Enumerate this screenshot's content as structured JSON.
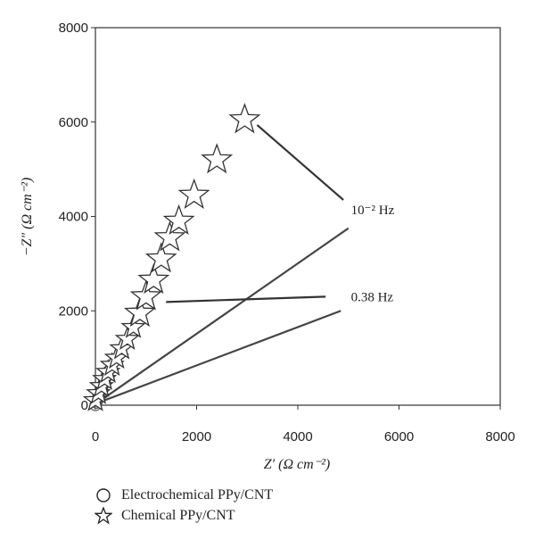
{
  "chart_data": {
    "type": "scatter",
    "title": "",
    "xlabel": "Z′ (Ω cm⁻²)",
    "ylabel": "−Z″ (Ω cm⁻²)",
    "xlim": [
      0,
      8000
    ],
    "ylim": [
      0,
      8000
    ],
    "xticks": [
      "0",
      "2000",
      "4000",
      "6000",
      "8000"
    ],
    "yticks": [
      "0",
      "2000",
      "4000",
      "6000",
      "8000"
    ],
    "grid": false,
    "series": [
      {
        "name": "Electrochemical PPy/CNT",
        "marker": "circle",
        "x": [
          0,
          20,
          40,
          60,
          80,
          100,
          120,
          140,
          160,
          180,
          200,
          220,
          240
        ],
        "y": [
          0,
          50,
          100,
          150,
          200,
          260,
          320,
          380,
          440,
          500,
          560,
          620,
          680
        ]
      },
      {
        "name": "Chemical PPy/CNT",
        "marker": "star",
        "x": [
          0,
          60,
          120,
          180,
          250,
          330,
          420,
          520,
          630,
          750,
          880,
          1000,
          1150,
          1300,
          1470,
          1650,
          1950,
          2400,
          2950
        ],
        "y": [
          100,
          250,
          400,
          550,
          700,
          850,
          1000,
          1200,
          1400,
          1650,
          1950,
          2300,
          2650,
          3100,
          3550,
          3900,
          4450,
          5200,
          6050
        ]
      },
      {
        "name": "",
        "marker": "line",
        "x": [
          170,
          5000
        ],
        "y": [
          150,
          3750
        ]
      },
      {
        "name": "",
        "marker": "line",
        "x": [
          170,
          4850
        ],
        "y": [
          100,
          2000
        ]
      }
    ],
    "annotations": [
      {
        "text": "10⁻² Hz",
        "x": 5050,
        "y": 4050,
        "arrow_to": [
          2950,
          6050
        ],
        "arrow_from": [
          4900,
          4350
        ]
      },
      {
        "text": "0.38 Hz",
        "x": 5050,
        "y": 2200,
        "arrow_to": [
          1150,
          2300
        ],
        "arrow_from": [
          4550,
          2300
        ]
      }
    ],
    "legend_position": "bottom-left"
  }
}
